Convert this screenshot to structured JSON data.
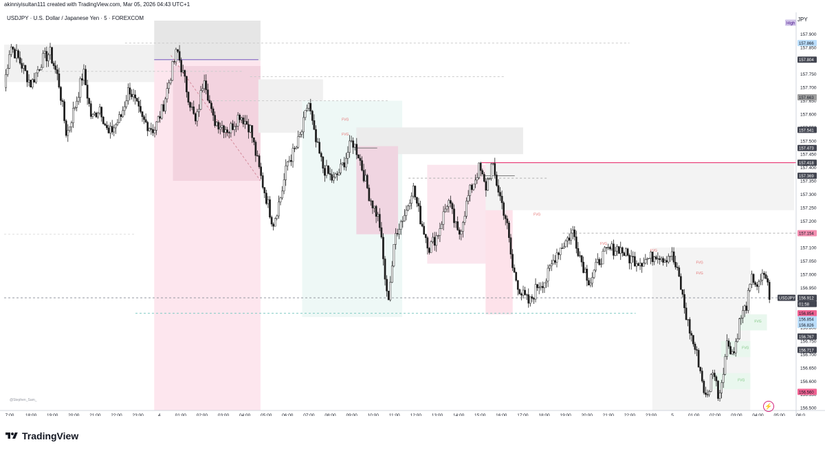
{
  "header": {
    "created_by": "akinniyisultan111 created with TradingView.com, Mar 05, 2026 04:43 UTC+1"
  },
  "symbol_line": "USDJPY · U.S. Dollar / Japanese Yen · 5 · FOREXCOM",
  "currency_label": "JPY",
  "source_tag": "@Stephen_Sam_",
  "footer": {
    "brand": "TradingView"
  },
  "chart_data": {
    "type": "candlestick",
    "title": "USDJPY · U.S. Dollar / Japanese Yen · 5 · FOREXCOM",
    "y_unit": "JPY",
    "ylim": [
      156.49,
      157.95
    ],
    "y_ticks": [
      156.5,
      156.55,
      156.6,
      156.65,
      156.7,
      156.75,
      156.8,
      156.85,
      156.9,
      156.95,
      157.0,
      157.05,
      157.1,
      157.15,
      157.2,
      157.25,
      157.3,
      157.35,
      157.4,
      157.45,
      157.5,
      157.55,
      157.6,
      157.65,
      157.7,
      157.75,
      157.8,
      157.85,
      157.9
    ],
    "x_ticks": [
      "7:00",
      "18:00",
      "19:00",
      "20:00",
      "21:00",
      "22:00",
      "23:00",
      "4",
      "01:00",
      "02:00",
      "03:00",
      "04:00",
      "05:00",
      "06:00",
      "07:00",
      "08:00",
      "09:00",
      "10:00",
      "11:00",
      "12:00",
      "13:00",
      "14:00",
      "15:00",
      "16:00",
      "17:00",
      "18:00",
      "19:00",
      "20:00",
      "21:00",
      "22:00",
      "23:00",
      "5",
      "01:00",
      "02:00",
      "03:00",
      "04:00",
      "05:00",
      "06:0"
    ],
    "price_labels": [
      {
        "text": "High",
        "kind": "high",
        "color": "#d1c4e9",
        "text_color": "#4a148c"
      },
      {
        "text": "157.866",
        "price": 157.866,
        "color": "#bbdefb",
        "text_color": "#131722"
      },
      {
        "text": "157.804",
        "price": 157.804,
        "color": "#434651",
        "text_color": "#ffffff"
      },
      {
        "text": "157.663",
        "price": 157.663,
        "color": "#9e9e9e",
        "text_color": "#131722"
      },
      {
        "text": "157.541",
        "price": 157.541,
        "color": "#434651",
        "text_color": "#ffffff"
      },
      {
        "text": "157.473",
        "price": 157.473,
        "color": "#434651",
        "text_color": "#ffffff"
      },
      {
        "text": "157.418",
        "price": 157.418,
        "color": "#434651",
        "text_color": "#ffffff"
      },
      {
        "text": "157.369",
        "price": 157.369,
        "color": "#434651",
        "text_color": "#ffffff"
      },
      {
        "text": "157.154",
        "price": 157.154,
        "color": "#f48fb1",
        "text_color": "#131722"
      },
      {
        "text": "156.912",
        "price": 156.912,
        "color": "#434651",
        "text_color": "#ffffff"
      },
      {
        "text": "01:58",
        "kind": "countdown",
        "color": "#434651",
        "text_color": "#ffffff"
      },
      {
        "text": "156.854",
        "price": 156.854,
        "color": "#f06292",
        "text_color": "#131722"
      },
      {
        "text": "156.854",
        "price": 156.854,
        "color": "#bbdefb",
        "text_color": "#131722"
      },
      {
        "text": "156.826",
        "price": 156.826,
        "color": "#bbdefb",
        "text_color": "#131722"
      },
      {
        "text": "156.767",
        "price": 156.767,
        "color": "#434651",
        "text_color": "#ffffff"
      },
      {
        "text": "156.717",
        "price": 156.717,
        "color": "#434651",
        "text_color": "#ffffff"
      },
      {
        "text": "156.560",
        "price": 156.56,
        "color": "#f06292",
        "text_color": "#131722"
      }
    ],
    "current_price": {
      "symbol": "USDJPY",
      "price": 156.912
    },
    "fvg_label": "FVG",
    "zones": [
      {
        "t0": 0.0,
        "t1": 7.5,
        "p0": 157.72,
        "p1": 157.86,
        "color": "#f1f1f1"
      },
      {
        "t0": 7.2,
        "t1": 12.3,
        "p0": 157.8,
        "p1": 157.95,
        "color": "#e6e6e6"
      },
      {
        "t0": 7.2,
        "t1": 12.3,
        "p0": 156.49,
        "p1": 157.8,
        "color": "#fde6ee"
      },
      {
        "t0": 8.1,
        "t1": 12.3,
        "p0": 157.35,
        "p1": 157.78,
        "color": "#f3d3df"
      },
      {
        "t0": 12.2,
        "t1": 15.3,
        "p0": 157.53,
        "p1": 157.73,
        "color": "#f0f0f0"
      },
      {
        "t0": 14.3,
        "t1": 19.1,
        "p0": 156.84,
        "p1": 157.65,
        "color": "#eef8f6"
      },
      {
        "t0": 16.9,
        "t1": 24.9,
        "p0": 157.45,
        "p1": 157.55,
        "color": "#ececec"
      },
      {
        "t0": 16.9,
        "t1": 18.9,
        "p0": 157.15,
        "p1": 157.48,
        "color": "#f0d5e1"
      },
      {
        "t0": 20.3,
        "t1": 24.3,
        "p0": 157.04,
        "p1": 157.41,
        "color": "#fbe6ee"
      },
      {
        "t0": 23.1,
        "t1": 24.4,
        "p0": 156.85,
        "p1": 157.28,
        "color": "#fde2ea"
      },
      {
        "t0": 23.1,
        "t1": 37.9,
        "p0": 157.24,
        "p1": 157.42,
        "color": "#f3f3f3"
      },
      {
        "t0": 31.1,
        "t1": 35.8,
        "p0": 156.49,
        "p1": 157.1,
        "color": "#f4f4f4"
      },
      {
        "t0": 35.3,
        "t1": 36.6,
        "p0": 156.79,
        "p1": 156.85,
        "color": "#e9f7ee"
      },
      {
        "t0": 34.4,
        "t1": 35.8,
        "p0": 156.69,
        "p1": 156.75,
        "color": "#e9f7ee"
      },
      {
        "t0": 34.0,
        "t1": 35.8,
        "p0": 156.57,
        "p1": 156.63,
        "color": "#e9f7ee"
      }
    ],
    "h_lines": [
      {
        "price": 157.418,
        "t0": 22.9,
        "t1": 38.0,
        "color": "#e91e63",
        "dash": false
      },
      {
        "price": 157.804,
        "t0": 7.2,
        "t1": 12.2,
        "color": "#7e57c2",
        "dash": false
      },
      {
        "price": 157.866,
        "t0": 5.8,
        "t1": 30.0,
        "color": "#cccccc",
        "dash": true
      },
      {
        "price": 157.76,
        "t0": 1.8,
        "t1": 11.5,
        "color": "#cccccc",
        "dash": true
      },
      {
        "price": 157.74,
        "t0": 11.8,
        "t1": 24.0,
        "color": "#cccccc",
        "dash": true
      },
      {
        "price": 157.65,
        "t0": 9.8,
        "t1": 18.4,
        "color": "#cccccc",
        "dash": true
      },
      {
        "price": 157.473,
        "t0": 16.9,
        "t1": 17.9,
        "color": "#777777",
        "dash": false
      },
      {
        "price": 157.369,
        "t0": 22.9,
        "t1": 24.5,
        "color": "#777777",
        "dash": false
      },
      {
        "price": 157.36,
        "t0": 19.4,
        "t1": 26.1,
        "color": "#b0b0b0",
        "dash": true
      },
      {
        "price": 157.154,
        "t0": 26.8,
        "t1": 38.0,
        "color": "#b0b0b0",
        "dash": true
      },
      {
        "price": 157.15,
        "t0": 0.0,
        "t1": 6.3,
        "color": "#e0e0e0",
        "dash": true
      },
      {
        "price": 156.912,
        "t0": 0.0,
        "t1": 38.0,
        "color": "#9598a1",
        "dash": true
      },
      {
        "price": 156.854,
        "t0": 6.3,
        "t1": 30.3,
        "color": "#80cbc4",
        "dash": true
      }
    ],
    "fvg_tags": [
      {
        "t": 16.2,
        "p": 157.575,
        "color": "#e57373"
      },
      {
        "t": 16.2,
        "p": 157.52,
        "color": "#e57373"
      },
      {
        "t": 25.4,
        "p": 157.22,
        "color": "#e57373"
      },
      {
        "t": 28.6,
        "p": 157.11,
        "color": "#e57373"
      },
      {
        "t": 31.0,
        "p": 157.085,
        "color": "#e57373"
      },
      {
        "t": 33.2,
        "p": 157.04,
        "color": "#e57373"
      },
      {
        "t": 33.2,
        "p": 157.0,
        "color": "#e57373"
      },
      {
        "t": 36.0,
        "p": 156.82,
        "color": "#81c784"
      },
      {
        "t": 35.4,
        "p": 156.72,
        "color": "#81c784"
      },
      {
        "t": 35.2,
        "p": 156.6,
        "color": "#81c784"
      }
    ],
    "dashed_trend": {
      "t0": 8.0,
      "p0": 157.82,
      "t1": 12.3,
      "p1": 157.35,
      "color": "#d48a9a"
    },
    "series": [
      {
        "name": "USDJPY",
        "anchors": [
          [
            0.0,
            157.7
          ],
          [
            0.3,
            157.86
          ],
          [
            0.8,
            157.79
          ],
          [
            1.3,
            157.71
          ],
          [
            1.8,
            157.8
          ],
          [
            2.2,
            157.83
          ],
          [
            2.6,
            157.73
          ],
          [
            3.0,
            157.52
          ],
          [
            3.5,
            157.66
          ],
          [
            3.8,
            157.76
          ],
          [
            4.2,
            157.58
          ],
          [
            4.6,
            157.63
          ],
          [
            5.0,
            157.52
          ],
          [
            5.6,
            157.59
          ],
          [
            6.0,
            157.7
          ],
          [
            6.6,
            157.58
          ],
          [
            7.2,
            157.54
          ],
          [
            7.6,
            157.62
          ],
          [
            8.0,
            157.75
          ],
          [
            8.3,
            157.84
          ],
          [
            8.8,
            157.68
          ],
          [
            9.2,
            157.56
          ],
          [
            9.6,
            157.75
          ],
          [
            10.0,
            157.58
          ],
          [
            10.4,
            157.56
          ],
          [
            10.8,
            157.54
          ],
          [
            11.3,
            157.6
          ],
          [
            11.8,
            157.55
          ],
          [
            12.3,
            157.37
          ],
          [
            12.7,
            157.25
          ],
          [
            12.9,
            157.19
          ],
          [
            13.3,
            157.3
          ],
          [
            13.6,
            157.42
          ],
          [
            14.0,
            157.47
          ],
          [
            14.3,
            157.54
          ],
          [
            14.6,
            157.65
          ],
          [
            14.9,
            157.51
          ],
          [
            15.3,
            157.4
          ],
          [
            15.8,
            157.35
          ],
          [
            16.2,
            157.4
          ],
          [
            16.7,
            157.5
          ],
          [
            17.0,
            157.45
          ],
          [
            17.5,
            157.3
          ],
          [
            18.0,
            157.2
          ],
          [
            18.4,
            156.89
          ],
          [
            18.8,
            157.16
          ],
          [
            19.3,
            157.24
          ],
          [
            19.6,
            157.33
          ],
          [
            20.0,
            157.2
          ],
          [
            20.4,
            157.1
          ],
          [
            20.8,
            157.15
          ],
          [
            21.3,
            157.28
          ],
          [
            21.8,
            157.14
          ],
          [
            22.3,
            157.3
          ],
          [
            22.8,
            157.4
          ],
          [
            23.1,
            157.32
          ],
          [
            23.4,
            157.41
          ],
          [
            23.8,
            157.29
          ],
          [
            24.1,
            157.2
          ],
          [
            24.4,
            157.02
          ],
          [
            24.8,
            156.93
          ],
          [
            25.2,
            156.89
          ],
          [
            25.6,
            156.96
          ],
          [
            26.0,
            156.98
          ],
          [
            26.5,
            157.08
          ],
          [
            26.9,
            157.12
          ],
          [
            27.3,
            157.16
          ],
          [
            27.7,
            157.05
          ],
          [
            28.1,
            156.97
          ],
          [
            28.6,
            157.06
          ],
          [
            29.0,
            157.09
          ],
          [
            29.5,
            157.1
          ],
          [
            30.0,
            157.06
          ],
          [
            30.5,
            157.05
          ],
          [
            31.0,
            157.06
          ],
          [
            31.3,
            157.08
          ],
          [
            31.7,
            157.06
          ],
          [
            32.0,
            157.08
          ],
          [
            32.4,
            156.98
          ],
          [
            32.7,
            156.85
          ],
          [
            33.0,
            156.76
          ],
          [
            33.3,
            156.68
          ],
          [
            33.7,
            156.52
          ],
          [
            34.0,
            156.65
          ],
          [
            34.3,
            156.54
          ],
          [
            34.7,
            156.75
          ],
          [
            35.0,
            156.7
          ],
          [
            35.3,
            156.83
          ],
          [
            35.6,
            156.88
          ],
          [
            35.9,
            156.99
          ],
          [
            36.2,
            156.95
          ],
          [
            36.5,
            157.01
          ],
          [
            36.75,
            156.91
          ]
        ]
      }
    ],
    "grid": false,
    "legend": "none"
  }
}
